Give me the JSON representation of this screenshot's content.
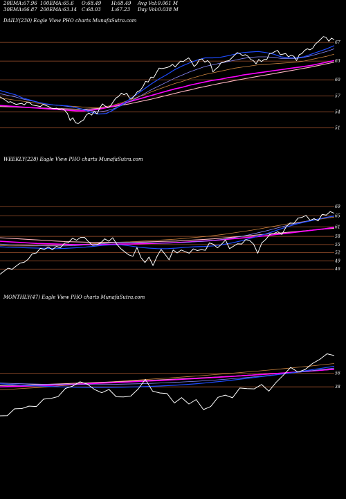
{
  "header": {
    "row1": [
      {
        "label": "20EMA:",
        "value": "67.96"
      },
      {
        "label": "100EMA:",
        "value": "65.6"
      },
      {
        "label": "O:",
        "value": "68.49"
      },
      {
        "label": "H:",
        "value": "68.49"
      },
      {
        "label": "Avg Vol:",
        "value": "0.061 M"
      }
    ],
    "row2": [
      {
        "label": "30EMA:",
        "value": "66.87"
      },
      {
        "label": "200EMA:",
        "value": "63.14"
      },
      {
        "label": "C:",
        "value": "68.03"
      },
      {
        "label": "L:",
        "value": "67.23"
      },
      {
        "label": "Day Vol:",
        "value": "0.038 M"
      }
    ]
  },
  "panels": [
    {
      "id": "daily",
      "title": "DAILY(230) Eagle  View  PHO charts MunafaSutra.com"
    },
    {
      "id": "weekly",
      "title": "WEEKLY(228) Eagle  View  PHO charts MunafaSutra.com"
    },
    {
      "id": "monthly",
      "title": "MONTHLY(47) Eagle  View  PHO charts MunafaSutra.com"
    }
  ],
  "colors": {
    "background": "#000000",
    "price": "#ffffff",
    "gridline": "#a0522d",
    "ema20": "#1e4bff",
    "ema30": "#8a8aff",
    "ema100": "#ff00ff",
    "ema200": "#ffb6c1",
    "ema_brown": "#cd853f"
  },
  "chart_data": [
    {
      "type": "line",
      "title": "DAILY(230) Eagle  View  PHO charts MunafaSutra.com",
      "ylabels": [
        "67",
        "63",
        "60",
        "57",
        "54",
        "51"
      ],
      "ylevels": [
        67,
        63.5,
        60,
        57,
        54,
        51
      ],
      "ylim": [
        49,
        70
      ],
      "series": [
        {
          "key": "price",
          "values": [
            56.8,
            56.5,
            56.2,
            55.8,
            55.9,
            55.6,
            55.4,
            55.5,
            55.6,
            55.3,
            55.8,
            55.7,
            55.3,
            55.2,
            55.1,
            55.0,
            55.4,
            55.2,
            55.0,
            54.7,
            54.6,
            54.7,
            54.4,
            54.6,
            54.3,
            53.7,
            52.4,
            52.9,
            52.0,
            51.8,
            52.2,
            52.5,
            53.4,
            53.8,
            53.4,
            54.1,
            53.6,
            54.7,
            55.5,
            55.1,
            54.8,
            55.1,
            55.9,
            56.6,
            56.9,
            57.5,
            57.2,
            57.5,
            56.6,
            56.5,
            57.1,
            57.8,
            58.0,
            58.7,
            59.7,
            59.6,
            60.5,
            60.4,
            61.3,
            62.2,
            62.1,
            62.2,
            62.3,
            62.5,
            62.9,
            62.4,
            63.0,
            63.5,
            63.4,
            63.8,
            64.1,
            63.4,
            62.5,
            62.9,
            63.8,
            63.9,
            63.3,
            63.6,
            63.1,
            61.5,
            62.0,
            62.4,
            63.2,
            63.3,
            63.5,
            63.6,
            64.1,
            64.6,
            65.1,
            64.9,
            64.5,
            64.7,
            64.4,
            63.8,
            63.6,
            63.0,
            63.8,
            63.4,
            63.8,
            63.8,
            64.9,
            65.0,
            65.3,
            65.5,
            64.7,
            64.8,
            64.9,
            64.3,
            64.6,
            64.4,
            63.6,
            64.7,
            64.9,
            65.5,
            65.8,
            65.6,
            65.9,
            66.7,
            67.1,
            67.6,
            68.1,
            67.9,
            67.2,
            67.8,
            67.5
          ]
        },
        {
          "key": "ema20",
          "values": [
            58.0,
            57.6,
            57.2,
            56.6,
            56.2,
            55.8,
            55.5,
            55.3,
            55.2,
            55.1,
            54.8,
            54.4,
            53.9,
            53.6,
            53.7,
            54.4,
            55.3,
            56.3,
            57.3,
            58.3,
            59.3,
            60.2,
            61.0,
            61.9,
            62.6,
            63.2,
            63.7,
            64.1,
            64.1,
            64.2,
            64.5,
            64.8,
            65.1,
            65.2,
            65.3,
            65.1,
            64.8,
            64.3,
            64.1,
            64.1,
            64.3,
            64.8,
            65.3,
            65.8,
            66.4
          ]
        },
        {
          "key": "ema30",
          "values": [
            57.4,
            57.1,
            56.8,
            56.4,
            56.1,
            55.8,
            55.5,
            55.3,
            55.2,
            55.0,
            54.8,
            54.5,
            54.2,
            54.0,
            54.2,
            54.6,
            55.2,
            55.9,
            56.6,
            57.4,
            58.2,
            58.9,
            59.6,
            60.3,
            60.9,
            61.5,
            62.0,
            62.5,
            62.8,
            63.1,
            63.4,
            63.7,
            64.0,
            64.2,
            64.3,
            64.3,
            64.2,
            64.0,
            64.0,
            64.0,
            64.2,
            64.5,
            64.9,
            65.3,
            65.8
          ]
        },
        {
          "key": "ema_brown",
          "values": [
            56.6,
            56.4,
            56.2,
            56.0,
            55.8,
            55.6,
            55.4,
            55.3,
            55.2,
            55.1,
            55.0,
            54.9,
            54.8,
            54.8,
            55.0,
            55.3,
            55.7,
            56.2,
            56.7,
            57.2,
            57.8,
            58.3,
            58.8,
            59.3,
            59.7,
            60.2,
            60.6,
            61.0,
            61.3,
            61.6,
            61.9,
            62.2,
            62.4,
            62.6,
            62.8,
            62.9,
            63.0,
            63.1,
            63.2,
            63.3,
            63.5,
            63.8,
            64.1,
            64.4,
            64.8
          ]
        },
        {
          "key": "ema100",
          "values": [
            55.2,
            55.1,
            55.0,
            54.9,
            54.8,
            54.7,
            54.6,
            54.5,
            54.4,
            54.3,
            54.2,
            54.2,
            54.3,
            54.5,
            54.8,
            55.1,
            55.5,
            55.9,
            56.3,
            56.7,
            57.1,
            57.5,
            57.9,
            58.3,
            58.6,
            59.0,
            59.3,
            59.6,
            59.9,
            60.1,
            60.4,
            60.6,
            60.9,
            61.1,
            61.3,
            61.5,
            61.7,
            61.9,
            62.1,
            62.3,
            62.5,
            62.7,
            63.0,
            63.3,
            63.6
          ]
        },
        {
          "key": "ema200",
          "values": [
            55.0,
            54.95,
            54.9,
            54.85,
            54.8,
            54.75,
            54.7,
            54.65,
            54.6,
            54.55,
            54.5,
            54.5,
            54.55,
            54.65,
            54.8,
            55.0,
            55.25,
            55.5,
            55.8,
            56.1,
            56.4,
            56.75,
            57.1,
            57.45,
            57.8,
            58.1,
            58.45,
            58.75,
            59.05,
            59.35,
            59.6,
            59.9,
            60.15,
            60.4,
            60.65,
            60.9,
            61.15,
            61.4,
            61.65,
            61.9,
            62.15,
            62.4,
            62.7,
            63.0,
            63.3
          ]
        }
      ]
    },
    {
      "type": "line",
      "title": "WEEKLY(228) Eagle  View  PHO charts MunafaSutra.com",
      "ylabels": [
        "69",
        "65",
        "61",
        "58",
        "55",
        "52",
        "49",
        "46"
      ],
      "ylevels": [
        69,
        65.5,
        61.5,
        58,
        55,
        52,
        49,
        46
      ],
      "ylim": [
        43,
        71
      ],
      "series": [
        {
          "key": "price",
          "values": [
            44.1,
            45.2,
            46.3,
            45.9,
            47.1,
            48.2,
            48.5,
            49.6,
            51.6,
            51.9,
            53.6,
            53.2,
            54.1,
            53.1,
            54.3,
            53.8,
            55.5,
            55.7,
            57.3,
            56.6,
            57.6,
            57.6,
            56.0,
            54.7,
            54.9,
            55.6,
            57.1,
            56.2,
            57.5,
            55.1,
            53.5,
            52.3,
            51.2,
            50.7,
            53.9,
            50.2,
            48.4,
            50.4,
            47.3,
            50.7,
            53.2,
            51.4,
            49.4,
            53.0,
            51.9,
            53.0,
            52.4,
            51.8,
            53.4,
            52.8,
            53.1,
            52.9,
            55.6,
            55.1,
            53.8,
            55.1,
            56.7,
            53.5,
            54.4,
            55.3,
            55.2,
            56.8,
            56.5,
            55.1,
            51.8,
            55.6,
            56.9,
            58.7,
            59.1,
            59.7,
            58.7,
            61.4,
            62.9,
            62.8,
            64.7,
            65.0,
            65.7,
            63.9,
            64.5,
            63.7,
            66.1,
            65.8,
            67.1,
            66.5
          ]
        },
        {
          "key": "ema20",
          "values": [
            54.2,
            54.0,
            53.9,
            53.8,
            53.7,
            53.6,
            53.5,
            53.6,
            53.8,
            54.0,
            54.3,
            54.7,
            54.9,
            54.9,
            54.5,
            54.0,
            53.7,
            53.5,
            53.5,
            53.7,
            54.0,
            54.2,
            54.3,
            54.5,
            55.0,
            55.6,
            56.4,
            57.3,
            58.3,
            59.3,
            60.5,
            61.6,
            62.6,
            63.4,
            64.1,
            64.9,
            65.5
          ]
        },
        {
          "key": "ema30",
          "values": [
            55.2,
            55.0,
            54.8,
            54.7,
            54.6,
            54.5,
            54.5,
            54.5,
            54.6,
            54.8,
            55.0,
            55.3,
            55.6,
            55.8,
            55.8,
            55.7,
            55.6,
            55.5,
            55.5,
            55.6,
            55.8,
            56.0,
            56.2,
            56.5,
            56.9,
            57.4,
            58.0,
            58.7,
            59.5,
            60.3,
            61.2,
            62.1,
            62.9,
            63.6,
            64.2,
            64.9,
            65.4
          ]
        },
        {
          "key": "ema_brown",
          "values": [
            54.6,
            54.5,
            54.5,
            54.5,
            54.5,
            54.6,
            54.7,
            54.8,
            54.9,
            55.1,
            55.3,
            55.5,
            55.7,
            55.9,
            56.0,
            56.2,
            56.4,
            56.6,
            56.8,
            57.0,
            57.3,
            57.6,
            57.9,
            58.3,
            58.7,
            59.2,
            59.7,
            60.2,
            60.8,
            61.4,
            62.0,
            62.6,
            63.1,
            63.6,
            64.1,
            64.6,
            65.1
          ]
        },
        {
          "key": "ema100",
          "values": [
            56.2,
            56.0,
            55.8,
            55.6,
            55.4,
            55.3,
            55.2,
            55.1,
            55.0,
            55.0,
            55.0,
            55.0,
            55.1,
            55.2,
            55.2,
            55.3,
            55.4,
            55.5,
            55.6,
            55.7,
            55.9,
            56.1,
            56.3,
            56.5,
            56.8,
            57.1,
            57.4,
            57.7,
            58.0,
            58.4,
            58.8,
            59.2,
            59.6,
            60.0,
            60.4,
            60.8,
            61.3
          ]
        },
        {
          "key": "ema200",
          "values": [
            57.5,
            57.3,
            57.1,
            56.9,
            56.7,
            56.5,
            56.3,
            56.1,
            56.0,
            55.9,
            55.8,
            55.8,
            55.8,
            55.8,
            55.8,
            55.9,
            56.0,
            56.1,
            56.2,
            56.3,
            56.5,
            56.7,
            56.9,
            57.1,
            57.4,
            57.7,
            58.0,
            58.3,
            58.6,
            58.9,
            59.2,
            59.5,
            59.8,
            60.1,
            60.4,
            60.7,
            61.0
          ]
        }
      ]
    },
    {
      "type": "line",
      "title": "MONTHLY(47) Eagle  View  PHO charts MunafaSutra.com",
      "ylabels": [
        "56",
        "38"
      ],
      "ylevels": [
        56,
        38
      ],
      "ylim": [
        0,
        100
      ],
      "series": [
        {
          "key": "price",
          "values": [
            0.0,
            0.3,
            9.2,
            9.5,
            12.7,
            12.2,
            21.9,
            22.8,
            25.3,
            35.9,
            39.0,
            44.6,
            41.6,
            34.6,
            30.3,
            34.6,
            25.0,
            24.7,
            25.9,
            35.0,
            47.8,
            32.4,
            30.0,
            29.2,
            16.8,
            23.9,
            15.5,
            21.4,
            8.2,
            12.2,
            24.3,
            27.2,
            23.7,
            36.5,
            35.6,
            35.4,
            41.1,
            32.4,
            43.9,
            53.4,
            63.5,
            57.5,
            60.8,
            68.6,
            74.0,
            81.4,
            79.1
          ]
        },
        {
          "key": "ema20",
          "values": [
            42.0,
            41.0,
            40.0,
            39.2,
            38.5,
            38.0,
            37.6,
            37.4,
            37.3,
            37.4,
            37.6,
            38.0,
            38.5,
            39.2,
            40.0,
            41.0,
            42.3,
            43.8,
            45.5,
            47.3,
            49.2,
            51.2,
            53.2,
            55.2,
            57.5,
            60.0,
            62.5,
            65.0
          ]
        },
        {
          "key": "ema30",
          "values": [
            43.0,
            42.5,
            42.0,
            41.6,
            41.3,
            41.1,
            41.0,
            41.0,
            41.1,
            41.3,
            41.6,
            42.0,
            42.5,
            43.1,
            43.8,
            44.6,
            45.5,
            46.5,
            47.7,
            49.0,
            50.4,
            51.9,
            53.5,
            55.2,
            57.0,
            58.8,
            60.7,
            62.6
          ]
        },
        {
          "key": "ema_brown",
          "values": [
            34.0,
            35.0,
            36.0,
            37.0,
            38.2,
            39.5,
            40.8,
            42.1,
            43.4,
            44.6,
            45.7,
            46.8,
            47.9,
            49.0,
            50.1,
            51.2,
            52.4,
            53.6,
            54.9,
            56.2,
            57.6,
            59.0,
            60.5,
            62.0,
            63.6,
            65.2,
            66.9,
            68.6
          ]
        },
        {
          "key": "ema100",
          "values": [
            38.0,
            38.5,
            39.0,
            39.5,
            40.1,
            40.7,
            41.3,
            42.0,
            42.7,
            43.4,
            44.1,
            44.9,
            45.7,
            46.5,
            47.3,
            48.2,
            49.1,
            50.0,
            51.0,
            52.0,
            53.0,
            54.1,
            55.2,
            56.3,
            57.5,
            58.7,
            59.9,
            61.2
          ]
        },
        {
          "key": "ema200",
          "values": [
            39.5,
            40.0,
            40.5,
            41.0,
            41.5,
            42.0,
            42.6,
            43.2,
            43.8,
            44.4,
            45.1,
            45.8,
            46.5,
            47.2,
            48.0,
            48.8,
            49.6,
            50.5,
            51.4,
            52.3,
            53.3,
            54.3,
            55.3,
            56.4,
            57.5,
            58.6,
            59.8,
            61.0
          ]
        }
      ]
    }
  ]
}
